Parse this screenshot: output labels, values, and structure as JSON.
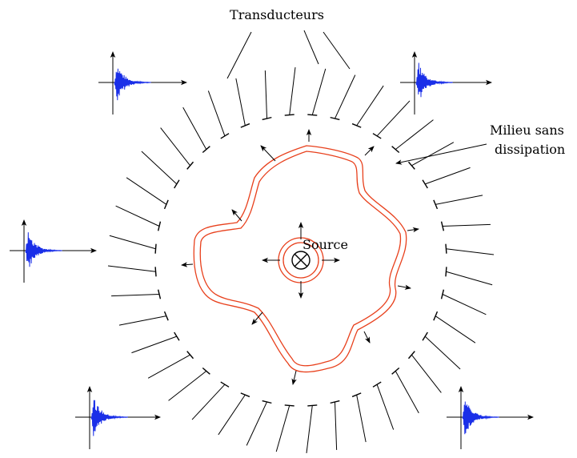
{
  "labels": {
    "transducers": "Transducteurs",
    "medium_line1": "Milieu sans",
    "medium_line2": "dissipation",
    "source": "Source"
  },
  "colors": {
    "wavefront": "#e8401c",
    "signal": "#1a2fe8",
    "ink": "#000000"
  },
  "transducer_count": 40,
  "signal_count": 5
}
